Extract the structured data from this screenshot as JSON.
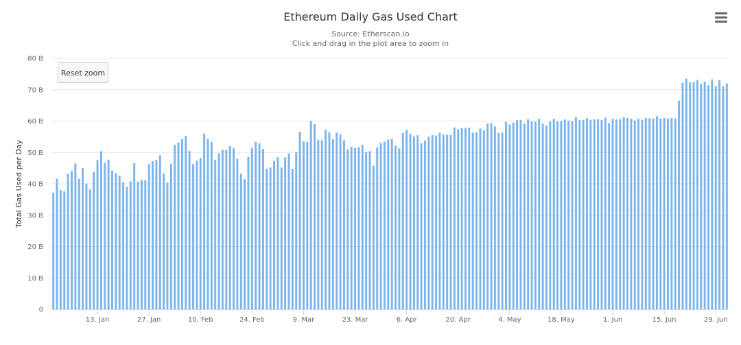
{
  "header": {
    "menu_icon": "hamburger-menu-icon"
  },
  "reset_zoom_label": "Reset zoom",
  "chart_data": {
    "type": "bar",
    "title": "Ethereum Daily Gas Used Chart",
    "subtitle": "Source: Etherscan.io",
    "subtitle2": "Click and drag in the plot area to zoom in",
    "ylabel": "Total Gas Used per Day",
    "xlabel": "",
    "ylim": [
      0,
      80
    ],
    "y_ticks": [
      0,
      10,
      20,
      30,
      40,
      50,
      60,
      70,
      80
    ],
    "y_tick_labels": [
      "0",
      "10 B",
      "20 B",
      "30 B",
      "40 B",
      "50 B",
      "60 B",
      "70 B",
      "80 B"
    ],
    "x_tick_labels": [
      "13. Jan",
      "27. Jan",
      "10. Feb",
      "24. Feb",
      "9. Mar",
      "23. Mar",
      "6. Apr",
      "20. Apr",
      "4. May",
      "18. May",
      "1. Jun",
      "15. Jun",
      "29. Jun"
    ],
    "x_tick_day_index": [
      12,
      26,
      40,
      54,
      68,
      82,
      96,
      110,
      124,
      138,
      152,
      166,
      180
    ],
    "bar_color": "#7cb5ec",
    "grid": true,
    "value_unit": "B",
    "values": [
      37.2,
      41.6,
      38.0,
      37.6,
      43.2,
      44.1,
      46.5,
      41.6,
      45.0,
      40.1,
      38.2,
      43.8,
      47.6,
      50.4,
      46.7,
      47.7,
      44.2,
      43.4,
      42.6,
      40.5,
      39.0,
      40.8,
      46.6,
      40.7,
      41.2,
      41.2,
      46.3,
      47.2,
      47.6,
      49.1,
      43.3,
      40.4,
      46.4,
      52.4,
      53.2,
      54.3,
      55.3,
      50.5,
      46.3,
      47.4,
      48.3,
      56.0,
      54.3,
      53.4,
      47.7,
      49.7,
      50.8,
      50.8,
      52.0,
      51.4,
      48.0,
      43.2,
      41.5,
      48.6,
      51.5,
      53.4,
      52.9,
      51.1,
      44.8,
      45.2,
      47.3,
      48.5,
      45.2,
      48.4,
      49.7,
      44.8,
      50.1,
      56.6,
      53.5,
      53.4,
      60.1,
      59.0,
      54.0,
      53.9,
      57.2,
      56.4,
      54.2,
      56.3,
      55.8,
      53.9,
      51.0,
      51.8,
      51.4,
      51.7,
      52.5,
      50.1,
      50.4,
      45.8,
      51.6,
      53.1,
      53.4,
      54.1,
      54.3,
      52.2,
      51.3,
      56.2,
      57.2,
      56.0,
      55.1,
      55.5,
      52.9,
      53.8,
      55.0,
      55.5,
      55.4,
      56.3,
      55.7,
      55.6,
      55.6,
      58.0,
      57.4,
      57.7,
      57.8,
      57.9,
      56.3,
      56.4,
      57.6,
      57.0,
      59.2,
      59.3,
      58.3,
      56.2,
      56.3,
      59.7,
      58.9,
      59.5,
      60.3,
      60.4,
      59.2,
      60.6,
      59.9,
      59.8,
      60.7,
      59.2,
      58.6,
      59.8,
      60.7,
      59.9,
      60.1,
      60.5,
      60.1,
      60.0,
      61.2,
      60.3,
      60.4,
      60.9,
      60.4,
      60.5,
      60.6,
      60.3,
      61.1,
      59.3,
      60.7,
      60.5,
      60.6,
      61.2,
      61.0,
      60.7,
      60.2,
      60.7,
      60.4,
      61.0,
      60.9,
      60.8,
      61.6,
      60.8,
      61.0,
      60.8,
      61.0,
      60.8,
      66.5,
      72.2,
      73.5,
      72.3,
      72.4,
      73.1,
      71.9,
      72.6,
      71.4,
      73.3,
      71.1,
      73.0,
      71.1,
      72.0
    ]
  }
}
